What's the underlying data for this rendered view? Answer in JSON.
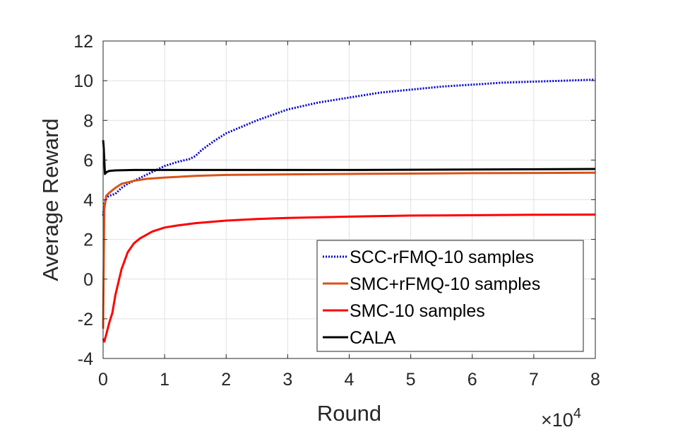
{
  "chart_data": {
    "type": "line",
    "title": "",
    "xlabel": "Round",
    "ylabel": "Average Reward",
    "x_exponent_label": "×10",
    "x_exponent_power": "4",
    "xlim": [
      0,
      8
    ],
    "ylim": [
      -4,
      12
    ],
    "xticks": [
      0,
      1,
      2,
      3,
      4,
      5,
      6,
      7,
      8
    ],
    "yticks": [
      -4,
      -2,
      0,
      2,
      4,
      6,
      8,
      10,
      12
    ],
    "grid": true,
    "legend_position": "bottom-right",
    "series": [
      {
        "name": "SCC-rFMQ-10 samples",
        "color": "#0000cc",
        "dash": "dotted",
        "x": [
          0,
          0.02,
          0.05,
          0.1,
          0.2,
          0.3,
          0.4,
          0.5,
          0.6,
          0.7,
          0.8,
          1.0,
          1.2,
          1.4,
          1.5,
          1.6,
          1.8,
          2.0,
          2.5,
          3.0,
          3.5,
          4.0,
          4.5,
          5.0,
          5.5,
          6.0,
          6.5,
          7.0,
          7.5,
          8.0
        ],
        "y": [
          3.2,
          3.8,
          4.1,
          4.2,
          4.3,
          4.6,
          4.8,
          4.95,
          5.1,
          5.25,
          5.4,
          5.7,
          5.9,
          6.05,
          6.2,
          6.5,
          6.95,
          7.35,
          8.0,
          8.55,
          8.9,
          9.15,
          9.4,
          9.55,
          9.7,
          9.8,
          9.9,
          9.95,
          10.0,
          10.05
        ]
      },
      {
        "name": "SMC+rFMQ-10 samples",
        "color": "#d95319",
        "dash": "solid",
        "x": [
          0,
          0.02,
          0.05,
          0.1,
          0.2,
          0.3,
          0.5,
          0.7,
          1.0,
          1.5,
          2.0,
          3.0,
          4.0,
          5.0,
          6.0,
          7.0,
          8.0
        ],
        "y": [
          -2.5,
          3.5,
          4.2,
          4.35,
          4.6,
          4.8,
          4.95,
          5.05,
          5.12,
          5.2,
          5.25,
          5.28,
          5.3,
          5.32,
          5.34,
          5.35,
          5.36
        ]
      },
      {
        "name": "SMC-10 samples",
        "color": "#ff0000",
        "dash": "solid",
        "x": [
          0,
          0.02,
          0.05,
          0.1,
          0.15,
          0.2,
          0.3,
          0.4,
          0.5,
          0.6,
          0.8,
          1.0,
          1.2,
          1.5,
          2.0,
          2.5,
          3.0,
          4.0,
          5.0,
          6.0,
          7.0,
          8.0
        ],
        "y": [
          -3.0,
          -3.15,
          -2.8,
          -2.2,
          -1.7,
          -0.8,
          0.5,
          1.35,
          1.8,
          2.05,
          2.4,
          2.6,
          2.7,
          2.82,
          2.95,
          3.03,
          3.08,
          3.15,
          3.2,
          3.22,
          3.24,
          3.25
        ]
      },
      {
        "name": "CALA",
        "color": "#000000",
        "dash": "solid",
        "x": [
          0,
          0.01,
          0.03,
          0.06,
          0.1,
          0.2,
          0.5,
          1.0,
          2.0,
          4.0,
          6.0,
          8.0
        ],
        "y": [
          7.0,
          6.6,
          5.3,
          5.4,
          5.45,
          5.48,
          5.5,
          5.5,
          5.5,
          5.5,
          5.52,
          5.55
        ]
      }
    ]
  }
}
